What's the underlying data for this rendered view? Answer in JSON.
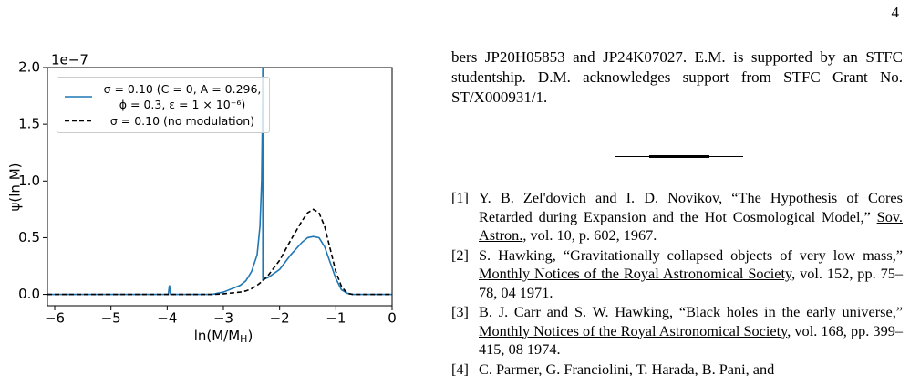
{
  "page_number": "4",
  "chart_data": {
    "type": "line",
    "offset_label": "1e−7",
    "ylabel": "ψ(ln M)",
    "xlabel": [
      "ln(M/M",
      "H",
      ")"
    ],
    "xlim": [
      -6.13,
      0
    ],
    "ylim": [
      -0.1,
      2.0
    ],
    "xticks": [
      {
        "value": -6,
        "label": "−6"
      },
      {
        "value": -5,
        "label": "−5"
      },
      {
        "value": -4,
        "label": "−4"
      },
      {
        "value": -3,
        "label": "−3"
      },
      {
        "value": -2,
        "label": "−2"
      },
      {
        "value": -1,
        "label": "−1"
      },
      0
    ],
    "yticks": [
      {
        "value": 0,
        "label": "0.0"
      },
      {
        "value": 0.5,
        "label": "0.5"
      },
      {
        "value": 1,
        "label": "1.0"
      },
      {
        "value": 1.5,
        "label": "1.5"
      },
      {
        "value": 2,
        "label": "2.0"
      }
    ],
    "grid": false,
    "legend": "upper left",
    "x": [
      -6.13,
      -4.0,
      -3.98,
      -3.96,
      -3.94,
      -3.2,
      -3.0,
      -2.7,
      -2.6,
      -2.5,
      -2.4,
      -2.35,
      -2.32,
      -2.305,
      -2.3,
      -2.299,
      -2.2,
      -2.0,
      -1.8,
      -1.6,
      -1.5,
      -1.4,
      -1.3,
      -1.2,
      -1.1,
      -1.0,
      -0.9,
      -0.8,
      -0.7,
      0.0
    ],
    "series": [
      {
        "name": "σ = 0.10 (C = 0,  A = 0.296,\nϕ = 0.3,  ε = 1 × 10⁻⁶)",
        "color": "#1f77b4",
        "linestyle": "solid",
        "values": [
          0,
          0,
          0,
          0.08,
          0,
          0,
          0.02,
          0.08,
          0.12,
          0.2,
          0.35,
          0.6,
          1.0,
          1.6,
          2.0,
          0.13,
          0.15,
          0.22,
          0.35,
          0.46,
          0.5,
          0.51,
          0.5,
          0.42,
          0.28,
          0.14,
          0.04,
          0.01,
          0,
          0
        ]
      },
      {
        "name": "σ = 0.10 (no modulation)",
        "color": "#000000",
        "linestyle": "dashed",
        "values": [
          0,
          0,
          0,
          0,
          0,
          0,
          0.005,
          0.02,
          0.03,
          0.05,
          0.08,
          0.1,
          0.11,
          0.12,
          0.12,
          0.12,
          0.17,
          0.3,
          0.48,
          0.65,
          0.72,
          0.75,
          0.72,
          0.6,
          0.4,
          0.2,
          0.07,
          0.01,
          0,
          0
        ]
      }
    ]
  },
  "paragraph": "bers JP20H05853 and JP24K07027. E.M. is supported by an STFC studentship. D.M. acknowledges support from STFC Grant No. ST/X000931/1.",
  "references": [
    {
      "label": "[1]",
      "before": "Y. B. Zel'dovich and I. D. Novikov, “The Hypothesis of Cores Retarded during Expansion and the Hot Cosmological Model,” ",
      "journal": "Sov. Astron.",
      "after": ", vol. 10, p. 602, 1967."
    },
    {
      "label": "[2]",
      "before": "S. Hawking, “Gravitationally collapsed objects of very low mass,” ",
      "journal": "Monthly Notices of the Royal Astronomical Society",
      "after": ", vol. 152, pp. 75–78, 04 1971."
    },
    {
      "label": "[3]",
      "before": "B. J. Carr and S. W. Hawking, “Black holes in the early universe,” ",
      "journal": "Monthly Notices of the Royal Astronomical Society",
      "after": ", vol. 168, pp. 399–415, 08 1974."
    },
    {
      "label": "[4]",
      "before": "C. Parmer, G. Franciolini, T. Harada, B. Pani, and",
      "journal": "",
      "after": ""
    }
  ]
}
